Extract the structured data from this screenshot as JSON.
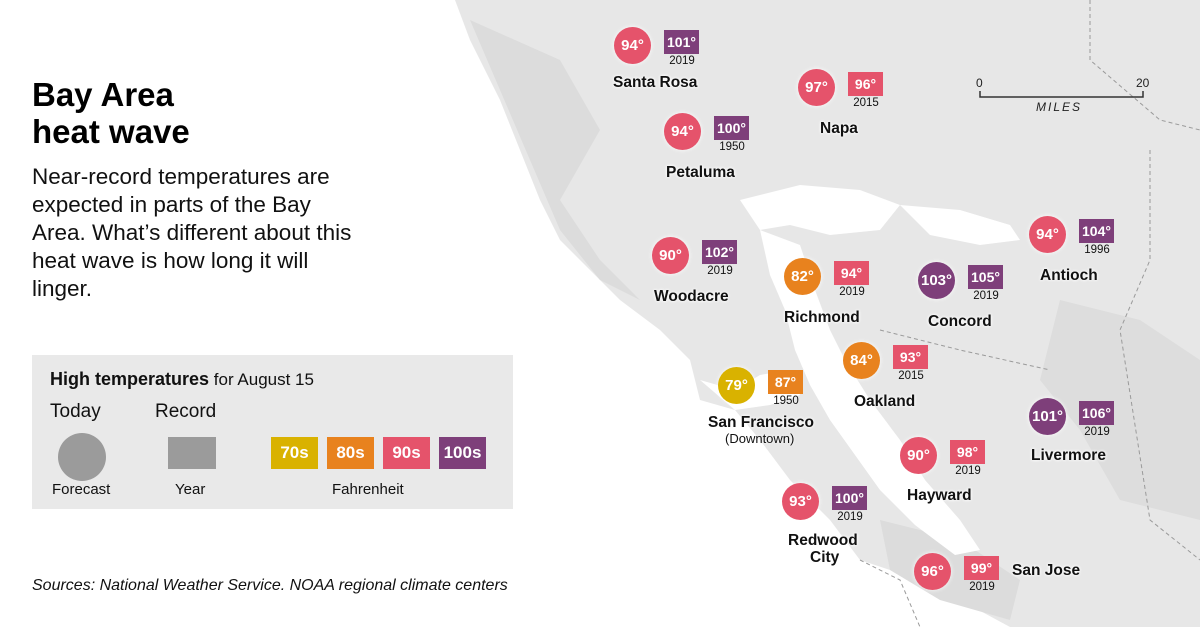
{
  "title_line1": "Bay Area",
  "title_line2": "heat wave",
  "intro": "Near-record temperatures are expected in parts of the Bay Area. What’s different about this heat wave is how long it will linger.",
  "legend": {
    "heading_bold": "High temperatures",
    "heading_rest": " for August 15",
    "today_label": "Today",
    "record_label": "Record",
    "forecast_label": "Forecast",
    "year_label": "Year",
    "unit_label": "Fahrenheit",
    "ranges": [
      {
        "label": "70s",
        "color": "#d9b200"
      },
      {
        "label": "80s",
        "color": "#e8821e"
      },
      {
        "label": "90s",
        "color": "#e5536b"
      },
      {
        "label": "100s",
        "color": "#7e3f7a"
      }
    ]
  },
  "sources": "Sources: National Weather Service. NOAA regional climate centers",
  "scale": {
    "start": "0",
    "end": "20",
    "unit": "MILES"
  },
  "colors": {
    "70s": "#d9b200",
    "80s": "#e8821e",
    "90s": "#e5536b",
    "100s": "#7e3f7a"
  },
  "cities": [
    {
      "name": "Santa Rosa",
      "sub": "",
      "forecast": "94°",
      "forecast_range": "90s",
      "record": "101°",
      "record_range": "100s",
      "year": "2019"
    },
    {
      "name": "Napa",
      "sub": "",
      "forecast": "97°",
      "forecast_range": "90s",
      "record": "96°",
      "record_range": "90s",
      "year": "2015"
    },
    {
      "name": "Petaluma",
      "sub": "",
      "forecast": "94°",
      "forecast_range": "90s",
      "record": "100°",
      "record_range": "100s",
      "year": "1950"
    },
    {
      "name": "Woodacre",
      "sub": "",
      "forecast": "90°",
      "forecast_range": "90s",
      "record": "102°",
      "record_range": "100s",
      "year": "2019"
    },
    {
      "name": "Richmond",
      "sub": "",
      "forecast": "82°",
      "forecast_range": "80s",
      "record": "94°",
      "record_range": "90s",
      "year": "2019"
    },
    {
      "name": "Concord",
      "sub": "",
      "forecast": "103°",
      "forecast_range": "100s",
      "record": "105°",
      "record_range": "100s",
      "year": "2019"
    },
    {
      "name": "Antioch",
      "sub": "",
      "forecast": "94°",
      "forecast_range": "90s",
      "record": "104°",
      "record_range": "100s",
      "year": "1996"
    },
    {
      "name": "Oakland",
      "sub": "",
      "forecast": "84°",
      "forecast_range": "80s",
      "record": "93°",
      "record_range": "90s",
      "year": "2015"
    },
    {
      "name": "San Francisco",
      "sub": "(Downtown)",
      "forecast": "79°",
      "forecast_range": "70s",
      "record": "87°",
      "record_range": "80s",
      "year": "1950"
    },
    {
      "name": "Livermore",
      "sub": "",
      "forecast": "101°",
      "forecast_range": "100s",
      "record": "106°",
      "record_range": "100s",
      "year": "2019"
    },
    {
      "name": "Hayward",
      "sub": "",
      "forecast": "90°",
      "forecast_range": "90s",
      "record": "98°",
      "record_range": "90s",
      "year": "2019"
    },
    {
      "name": "Redwood",
      "sub": "City",
      "forecast": "93°",
      "forecast_range": "90s",
      "record": "100°",
      "record_range": "100s",
      "year": "2019"
    },
    {
      "name": "San Jose",
      "sub": "",
      "forecast": "96°",
      "forecast_range": "90s",
      "record": "99°",
      "record_range": "90s",
      "year": "2019"
    }
  ]
}
